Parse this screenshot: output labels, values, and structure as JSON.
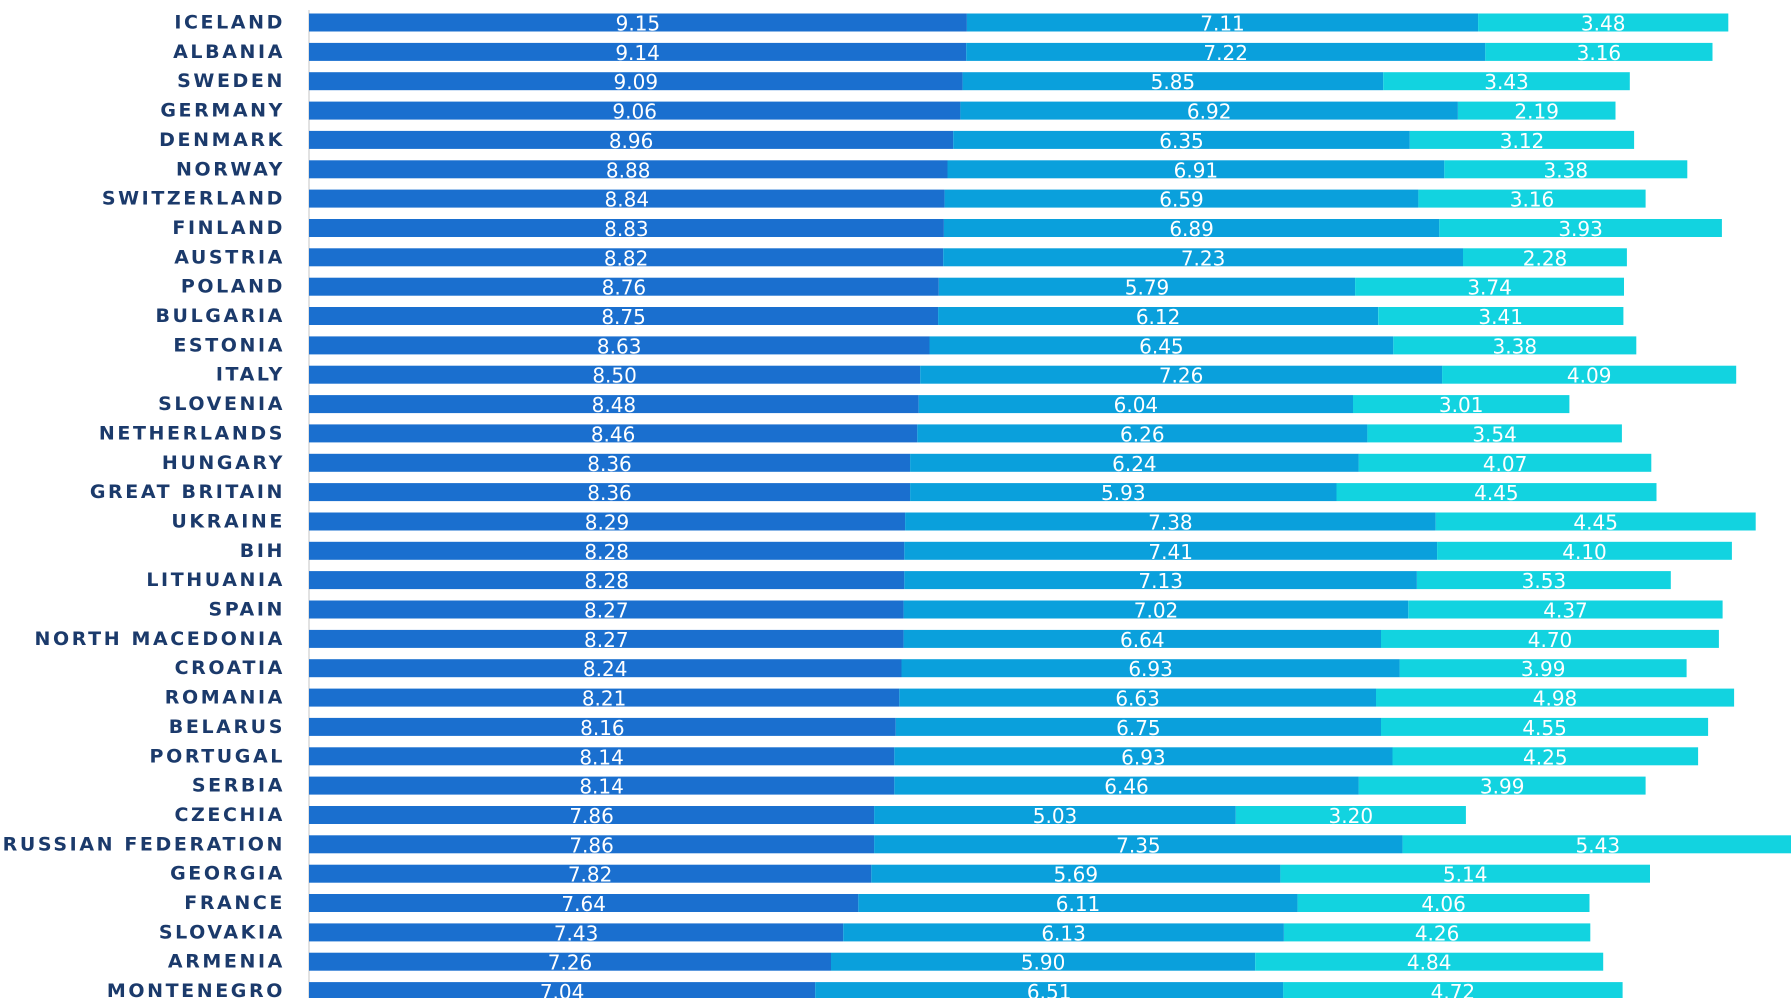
{
  "chart_data": {
    "type": "bar",
    "orientation": "horizontal",
    "stacked": true,
    "title": "",
    "xlabel": "",
    "ylabel": "",
    "grid": false,
    "legend": "none",
    "colors": [
      "#1a6fcf",
      "#0aa0dc",
      "#12d3e0"
    ],
    "categories": [
      "ICELAND",
      "ALBANIA",
      "SWEDEN",
      "GERMANY",
      "DENMARK",
      "NORWAY",
      "SWITZERLAND",
      "FINLAND",
      "AUSTRIA",
      "POLAND",
      "BULGARIA",
      "ESTONIA",
      "ITALY",
      "SLOVENIA",
      "NETHERLANDS",
      "HUNGARY",
      "GREAT BRITAIN",
      "UKRAINE",
      "BIH",
      "LITHUANIA",
      "SPAIN",
      "NORTH MACEDONIA",
      "CROATIA",
      "ROMANIA",
      "BELARUS",
      "PORTUGAL",
      "SERBIA",
      "CZECHIA",
      "RUSSIAN FEDERATION",
      "GEORGIA",
      "FRANCE",
      "SLOVAKIA",
      "ARMENIA",
      "MONTENEGRO"
    ],
    "series": [
      {
        "values": [
          "9.15",
          "9.14",
          "9.09",
          "9.06",
          "8.96",
          "8.88",
          "8.84",
          "8.83",
          "8.82",
          "8.76",
          "8.75",
          "8.63",
          "8.50",
          "8.48",
          "8.46",
          "8.36",
          "8.36",
          "8.29",
          "8.28",
          "8.28",
          "8.27",
          "8.27",
          "8.24",
          "8.21",
          "8.16",
          "8.14",
          "8.14",
          "7.86",
          "7.86",
          "7.82",
          "7.64",
          "7.43",
          "7.26",
          "7.04"
        ]
      },
      {
        "values": [
          "7.11",
          "7.22",
          "5.85",
          "6.92",
          "6.35",
          "6.91",
          "6.59",
          "6.89",
          "7.23",
          "5.79",
          "6.12",
          "6.45",
          "7.26",
          "6.04",
          "6.26",
          "6.24",
          "5.93",
          "7.38",
          "7.41",
          "7.13",
          "7.02",
          "6.64",
          "6.93",
          "6.63",
          "6.75",
          "6.93",
          "6.46",
          "5.03",
          "7.35",
          "5.69",
          "6.11",
          "6.13",
          "5.90",
          "6.51"
        ]
      },
      {
        "values": [
          "3.48",
          "3.16",
          "3.43",
          "2.19",
          "3.12",
          "3.38",
          "3.16",
          "3.93",
          "2.28",
          "3.74",
          "3.41",
          "3.38",
          "4.09",
          "3.01",
          "3.54",
          "4.07",
          "4.45",
          "4.45",
          "4.10",
          "3.53",
          "4.37",
          "4.70",
          "3.99",
          "4.98",
          "4.55",
          "4.25",
          "3.99",
          "3.20",
          "5.43",
          "5.14",
          "4.06",
          "4.26",
          "4.84",
          "4.72"
        ]
      }
    ]
  }
}
